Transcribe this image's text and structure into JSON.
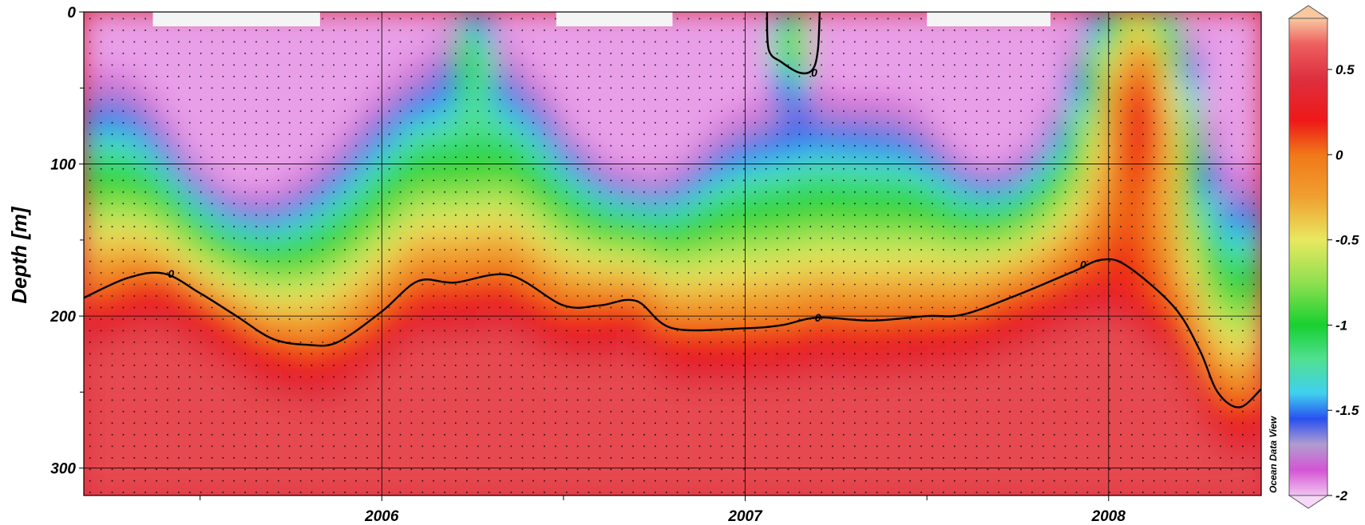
{
  "chart_data": {
    "type": "heatmap",
    "title": "",
    "xlabel": "",
    "ylabel": "Depth [m]",
    "xlim": [
      2005.18,
      2008.42
    ],
    "ylim": [
      318,
      0
    ],
    "x_ticks": [
      {
        "value": 2006,
        "label": "2006"
      },
      {
        "value": 2007,
        "label": "2007"
      },
      {
        "value": 2008,
        "label": "2008"
      }
    ],
    "x_minor_ticks": [
      2005.5,
      2006.5,
      2007.5
    ],
    "y_ticks": [
      {
        "value": 0,
        "label": "0"
      },
      {
        "value": 100,
        "label": "100"
      },
      {
        "value": 200,
        "label": "200"
      },
      {
        "value": 300,
        "label": "300"
      }
    ],
    "y_minor_ticks": [
      50,
      150,
      250
    ],
    "grid": true,
    "colorbar": {
      "range": [
        -2,
        0.8
      ],
      "ticks": [
        {
          "value": 0.5,
          "label": "0.5"
        },
        {
          "value": 0,
          "label": "0"
        },
        {
          "value": -0.5,
          "label": "-0.5"
        },
        {
          "value": -1,
          "label": "-1"
        },
        {
          "value": -1.5,
          "label": "-1.5"
        },
        {
          "value": -2,
          "label": "-2"
        }
      ],
      "colormap": [
        {
          "v": -2.0,
          "c": "#f2c4f2"
        },
        {
          "v": -1.85,
          "c": "#d455d4"
        },
        {
          "v": -1.7,
          "c": "#b09cd0"
        },
        {
          "v": -1.55,
          "c": "#2850f0"
        },
        {
          "v": -1.4,
          "c": "#40d0f0"
        },
        {
          "v": -1.2,
          "c": "#50e090"
        },
        {
          "v": -1.0,
          "c": "#18d030"
        },
        {
          "v": -0.75,
          "c": "#90e050"
        },
        {
          "v": -0.5,
          "c": "#e8e860"
        },
        {
          "v": -0.25,
          "c": "#f0a030"
        },
        {
          "v": 0.0,
          "c": "#f07818"
        },
        {
          "v": 0.2,
          "c": "#ee1818"
        },
        {
          "v": 0.45,
          "c": "#dd3040"
        },
        {
          "v": 0.65,
          "c": "#ee6060"
        },
        {
          "v": 0.8,
          "c": "#f8c8a0"
        }
      ],
      "over_color": "#f8c8a0",
      "under_color": "#f8d8f8"
    },
    "watermark": "Ocean Data View",
    "contour_level": 0,
    "contour_label": "0",
    "contour_main": [
      [
        2005.18,
        188
      ],
      [
        2005.3,
        175
      ],
      [
        2005.4,
        172
      ],
      [
        2005.5,
        185
      ],
      [
        2005.6,
        200
      ],
      [
        2005.7,
        215
      ],
      [
        2005.8,
        219
      ],
      [
        2005.88,
        217
      ],
      [
        2006.0,
        197
      ],
      [
        2006.1,
        177
      ],
      [
        2006.2,
        178
      ],
      [
        2006.35,
        173
      ],
      [
        2006.5,
        193
      ],
      [
        2006.6,
        193
      ],
      [
        2006.7,
        190
      ],
      [
        2006.8,
        208
      ],
      [
        2007.0,
        208
      ],
      [
        2007.1,
        206
      ],
      [
        2007.2,
        201
      ],
      [
        2007.35,
        203
      ],
      [
        2007.5,
        200
      ],
      [
        2007.6,
        199
      ],
      [
        2007.75,
        186
      ],
      [
        2007.9,
        171
      ],
      [
        2007.98,
        163
      ],
      [
        2008.05,
        167
      ],
      [
        2008.18,
        194
      ],
      [
        2008.25,
        222
      ],
      [
        2008.3,
        250
      ],
      [
        2008.36,
        260
      ],
      [
        2008.42,
        248
      ]
    ],
    "contour_surface": [
      [
        2007.06,
        0
      ],
      [
        2007.065,
        25
      ],
      [
        2007.1,
        33
      ],
      [
        2007.15,
        40
      ],
      [
        2007.185,
        38
      ],
      [
        2007.2,
        25
      ],
      [
        2007.205,
        0
      ]
    ],
    "no_data_at_surface": [
      [
        2005.37,
        2005.83
      ],
      [
        2006.48,
        2006.8
      ],
      [
        2007.5,
        2007.84
      ]
    ],
    "sample_spacing": {
      "dx": 0.0305,
      "dz": 7.6
    }
  }
}
